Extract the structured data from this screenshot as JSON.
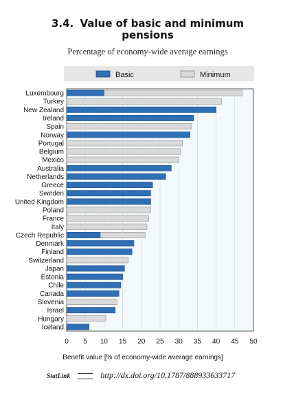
{
  "figure": {
    "number": "3.4.",
    "title": "Value of basic and minimum pensions",
    "subtitle": "Percentage of economy-wide average earnings",
    "statlink_label": "StatLink",
    "statlink_url": "http://dx.doi.org/10.1787/888933633717"
  },
  "colors": {
    "basic": "#2f6fb5",
    "minimum": "#d9d9d9",
    "plot_bg": "#f4f9fb",
    "legend_bg": "#e6e6e6"
  },
  "chart_data": {
    "type": "bar",
    "orientation": "horizontal",
    "xlabel": "Benefit value [% of economy-wide average earnings]",
    "xlim": [
      0,
      50
    ],
    "xticks": [
      0,
      5,
      10,
      15,
      20,
      25,
      30,
      35,
      40,
      45,
      50
    ],
    "grid": true,
    "legend_position": "top",
    "series_names": [
      "Basic",
      "Minimum"
    ],
    "categories": [
      "Luxembourg",
      "Turkey",
      "New Zealand",
      "Ireland",
      "Spain",
      "Norway",
      "Portugal",
      "Belgium",
      "Mexico",
      "Australia",
      "Netherlands",
      "Greece",
      "Sweden",
      "United Kingdom",
      "Poland",
      "France",
      "Italy",
      "Czech Republic",
      "Denmark",
      "Finland",
      "Switzerland",
      "Japan",
      "Estonia",
      "Chile",
      "Canada",
      "Slovenia",
      "Israel",
      "Hungary",
      "Iceland"
    ],
    "series": [
      {
        "name": "Basic",
        "values": [
          10,
          null,
          40,
          34,
          0,
          33,
          null,
          null,
          null,
          28,
          26.5,
          23,
          22.5,
          22.5,
          null,
          null,
          null,
          9,
          18,
          17.5,
          null,
          15.5,
          15,
          14.5,
          14,
          null,
          13,
          null,
          6
        ]
      },
      {
        "name": "Minimum",
        "values": [
          47,
          41.5,
          null,
          null,
          33.5,
          null,
          31,
          30.5,
          30,
          null,
          null,
          null,
          null,
          22.5,
          22.5,
          22,
          21.5,
          21,
          null,
          null,
          16.5,
          null,
          null,
          null,
          13.5,
          13.5,
          null,
          10.5,
          null
        ]
      }
    ]
  }
}
